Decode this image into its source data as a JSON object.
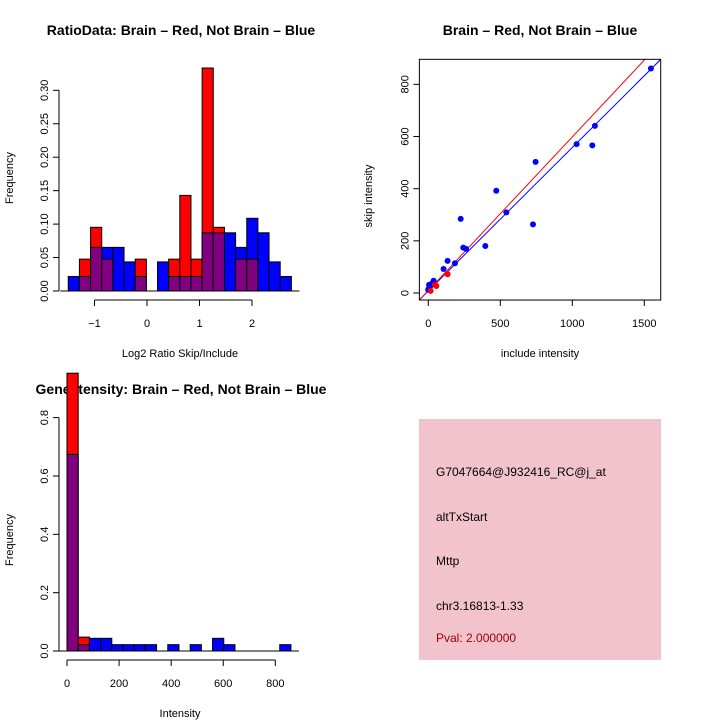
{
  "colors": {
    "brain": "#ff0000",
    "not_brain": "#0000ff",
    "overlap": "#800080",
    "panel_bg": "#f3c3cd",
    "pval": "#990000"
  },
  "chart_data": [
    {
      "type": "bar",
      "title": "RatioData: Brain – Red, Not Brain – Blue",
      "xlabel": "Log2 Ratio Skip/Include",
      "ylabel": "Frequency",
      "bin_start": -1.5,
      "bin_width": 0.2125,
      "xticks": [
        -1,
        0,
        1,
        2
      ],
      "xtick_labels": [
        "−1",
        "0",
        "1",
        "2"
      ],
      "yticks": [
        0,
        0.05,
        0.1,
        0.15,
        0.2,
        0.25,
        0.3
      ],
      "ytick_labels": [
        "0.00",
        "0.05",
        "0.10",
        "0.15",
        "0.20",
        "0.25",
        "0.30"
      ],
      "series": [
        {
          "name": "Not Brain",
          "color": "blue",
          "values": [
            0.0217,
            0.0217,
            0.0652,
            0.0652,
            0.0652,
            0.0435,
            0.0217,
            0,
            0.0435,
            0.0217,
            0.0217,
            0.0217,
            0.087,
            0.087,
            0.087,
            0.0652,
            0.1087,
            0.087,
            0.0435,
            0.0217
          ]
        },
        {
          "name": "Brain",
          "color": "red",
          "values": [
            0,
            0.0476,
            0.0952,
            0.0476,
            0,
            0,
            0.0476,
            0,
            0,
            0.0476,
            0.1429,
            0.0476,
            0.3333,
            0.0952,
            0,
            0.0476,
            0.0476,
            0,
            0,
            0
          ]
        }
      ]
    },
    {
      "type": "scatter",
      "title": "Brain – Red, Not Brain – Blue",
      "xlabel": "include intensity",
      "ylabel": "skip intensity",
      "xlim": [
        -62,
        1614
      ],
      "ylim": [
        -27,
        896
      ],
      "xticks": [
        0,
        500,
        1000,
        1500
      ],
      "yticks": [
        0,
        200,
        400,
        600,
        800
      ],
      "series": [
        {
          "name": "Not Brain",
          "color": "blue",
          "points": [
            [
              1546,
              861
            ],
            [
              1157,
              641
            ],
            [
              1030,
              571
            ],
            [
              1139,
              566
            ],
            [
              745,
              503
            ],
            [
              472,
              392
            ],
            [
              727,
              263
            ],
            [
              542,
              309
            ],
            [
              225,
              284
            ],
            [
              396,
              180
            ],
            [
              243,
              174
            ],
            [
              262,
              169
            ],
            [
              134,
              123
            ],
            [
              185,
              114
            ],
            [
              106,
              92
            ],
            [
              37,
              47
            ],
            [
              23,
              35
            ],
            [
              5,
              31
            ],
            [
              0,
              14
            ],
            [
              12,
              24
            ],
            [
              0,
              12
            ]
          ],
          "fit": {
            "slope": 0.55,
            "intercept": 8
          }
        },
        {
          "name": "Brain",
          "color": "red",
          "points": [
            [
              134,
              72
            ],
            [
              56,
              27
            ],
            [
              16,
              8
            ],
            [
              46,
              31
            ]
          ],
          "fit": {
            "slope": 0.589,
            "intercept": 9.5
          }
        }
      ]
    },
    {
      "type": "bar",
      "title": "Gene Itensity: Brain – Red, Not Brain – Blue",
      "xlabel": "Intensity",
      "ylabel": "Frequency",
      "bin_start": 0,
      "bin_width": 43,
      "xticks": [
        0,
        200,
        400,
        600,
        800
      ],
      "yticks": [
        0,
        0.2,
        0.4,
        0.6,
        0.8
      ],
      "ytick_labels": [
        "0.0",
        "0.2",
        "0.4",
        "0.6",
        "0.8"
      ],
      "series": [
        {
          "name": "Not Brain",
          "color": "blue",
          "values": [
            0.6739,
            0.0217,
            0.0435,
            0.0435,
            0.0217,
            0.0217,
            0.0217,
            0.0217,
            0,
            0.0217,
            0,
            0.0217,
            0,
            0.0435,
            0.0217,
            0,
            0,
            0,
            0,
            0.0217
          ]
        },
        {
          "name": "Brain",
          "color": "red",
          "values": [
            0.9524,
            0.0476,
            0,
            0,
            0,
            0,
            0,
            0,
            0,
            0,
            0,
            0,
            0,
            0,
            0,
            0,
            0,
            0,
            0,
            0
          ]
        }
      ]
    }
  ],
  "info_panel": {
    "probe_id": "G7047664@J932416_RC@j_at",
    "event_type": "altTxStart",
    "gene": "Mttp",
    "location": "chr3.16813-1.33",
    "pval": "Pval: 2.000000"
  }
}
